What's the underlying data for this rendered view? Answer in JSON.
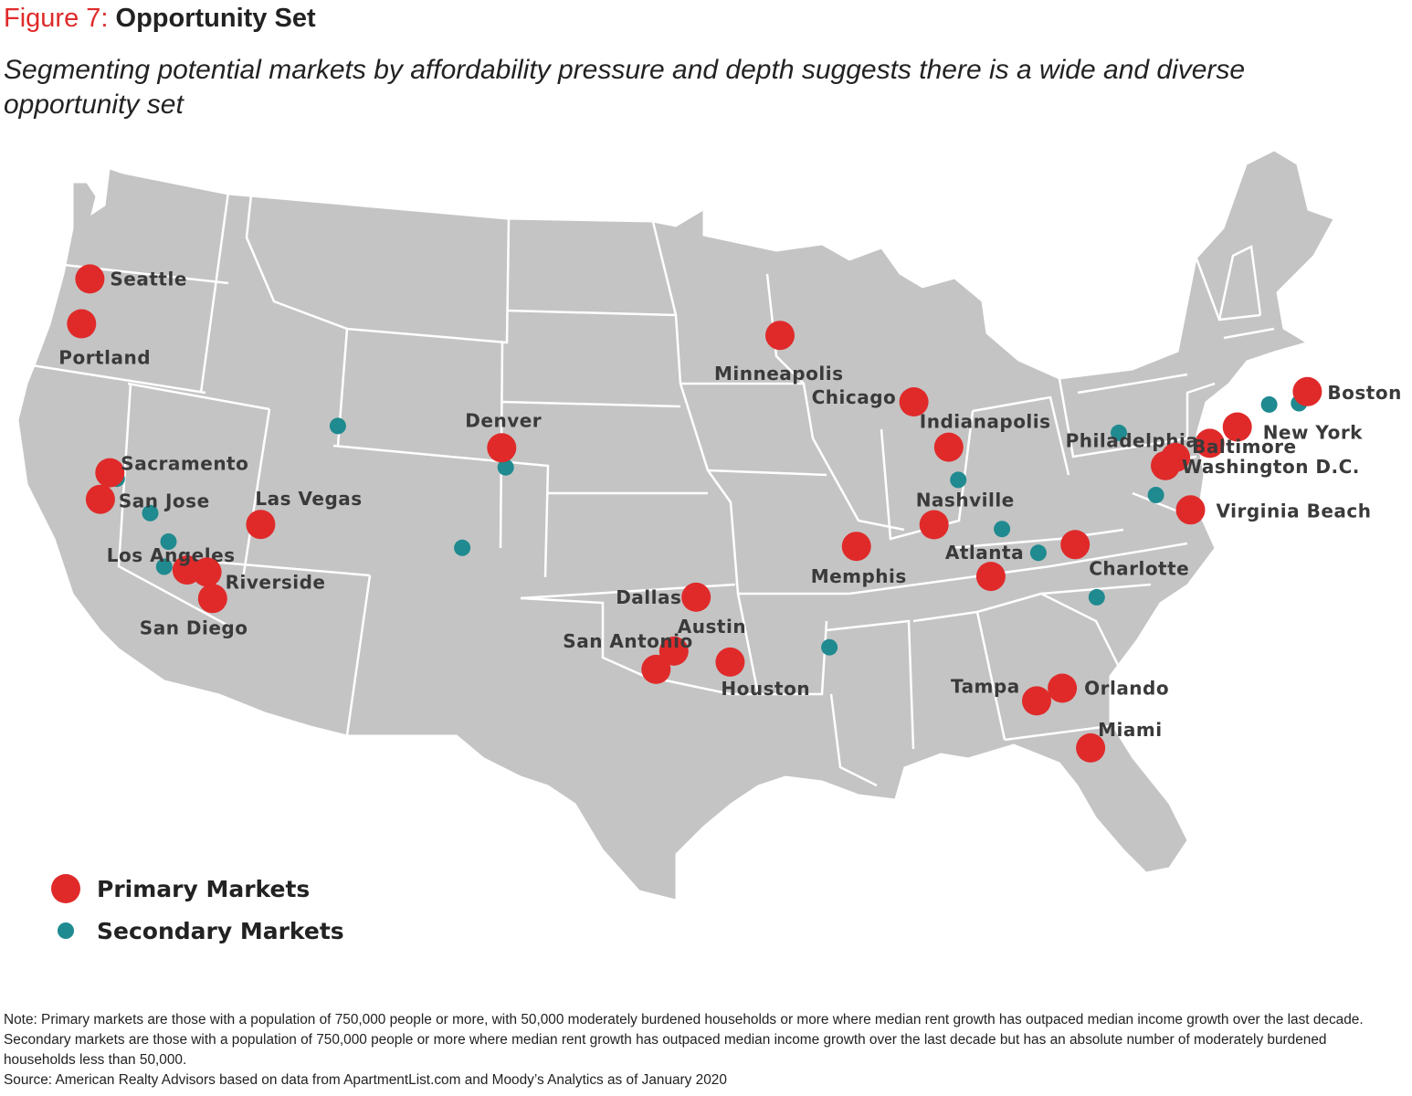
{
  "header": {
    "figure_label": "Figure 7:",
    "title": "Opportunity Set",
    "subtitle": "Segmenting potential markets by affordability pressure and depth suggests there is a wide and diverse opportunity set"
  },
  "colors": {
    "land": "#c4c4c4",
    "border": "#ffffff",
    "primary": "#e02a2a",
    "secondary": "#1f8a8f"
  },
  "legend": {
    "primary_label": "Primary Markets",
    "secondary_label": "Secondary Markets"
  },
  "primary_markets": [
    {
      "name": "Seattle",
      "lat": 47.61,
      "lon": -122.33
    },
    {
      "name": "Portland",
      "lat": 45.52,
      "lon": -122.68
    },
    {
      "name": "Sacramento",
      "lat": 38.58,
      "lon": -121.49
    },
    {
      "name": "San Jose",
      "lat": 37.34,
      "lon": -121.89
    },
    {
      "name": "Las Vegas",
      "lat": 36.17,
      "lon": -115.14
    },
    {
      "name": "Los Angeles",
      "lat": 34.05,
      "lon": -118.24
    },
    {
      "name": "Riverside",
      "lat": 33.95,
      "lon": -117.4
    },
    {
      "name": "San Diego",
      "lat": 32.72,
      "lon": -117.16
    },
    {
      "name": "Denver",
      "lat": 39.74,
      "lon": -104.99
    },
    {
      "name": "Minneapolis",
      "lat": 44.98,
      "lon": -93.27
    },
    {
      "name": "Chicago",
      "lat": 41.88,
      "lon": -87.63
    },
    {
      "name": "Indianapolis",
      "lat": 39.77,
      "lon": -86.16
    },
    {
      "name": "Nashville",
      "lat": 36.16,
      "lon": -86.78
    },
    {
      "name": "Memphis",
      "lat": 35.15,
      "lon": -90.05
    },
    {
      "name": "Atlanta",
      "lat": 33.75,
      "lon": -84.39
    },
    {
      "name": "Charlotte",
      "lat": 35.23,
      "lon": -80.84
    },
    {
      "name": "Dallas",
      "lat": 32.78,
      "lon": -96.8
    },
    {
      "name": "Austin",
      "lat": 30.27,
      "lon": -97.74
    },
    {
      "name": "San Antonio",
      "lat": 29.42,
      "lon": -98.49
    },
    {
      "name": "Houston",
      "lat": 29.76,
      "lon": -95.37
    },
    {
      "name": "Tampa",
      "lat": 27.95,
      "lon": -82.46
    },
    {
      "name": "Orlando",
      "lat": 28.54,
      "lon": -81.38
    },
    {
      "name": "Miami",
      "lat": 25.76,
      "lon": -80.19
    },
    {
      "name": "Boston",
      "lat": 42.36,
      "lon": -71.06
    },
    {
      "name": "New York",
      "lat": 40.71,
      "lon": -74.01
    },
    {
      "name": "Philadelphia",
      "lat": 39.95,
      "lon": -75.17
    },
    {
      "name": "Baltimore",
      "lat": 39.29,
      "lon": -76.61
    },
    {
      "name": "Washington D.C.",
      "lat": 38.91,
      "lon": -77.04
    },
    {
      "name": "Virginia Beach",
      "lat": 36.85,
      "lon": -75.98
    }
  ],
  "secondary_markets": [
    {
      "lat": 40.76,
      "lon": -111.89
    },
    {
      "lat": 38.3,
      "lon": -121.2
    },
    {
      "lat": 36.7,
      "lon": -119.79
    },
    {
      "lat": 35.37,
      "lon": -119.02
    },
    {
      "lat": 34.2,
      "lon": -119.2
    },
    {
      "lat": 38.83,
      "lon": -104.82
    },
    {
      "lat": 35.08,
      "lon": -106.65
    },
    {
      "lat": 30.45,
      "lon": -91.19
    },
    {
      "lat": 38.25,
      "lon": -85.76
    },
    {
      "lat": 35.96,
      "lon": -83.92
    },
    {
      "lat": 34.85,
      "lon": -82.39
    },
    {
      "lat": 32.78,
      "lon": -79.93
    },
    {
      "lat": 37.54,
      "lon": -77.44
    },
    {
      "lat": 40.44,
      "lon": -79.0
    },
    {
      "lat": 41.76,
      "lon": -72.67
    },
    {
      "lat": 41.82,
      "lon": -71.41
    }
  ],
  "notes": {
    "note": "Note: Primary markets are those with a population of 750,000 people or more, with 50,000 moderately burdened households or more where median rent growth has outpaced median income growth over the last decade. Secondary markets are those with a population of 750,000 people or more where median rent growth has outpaced median income growth over the last decade but has an absolute number of moderately burdened households less than 50,000.",
    "source": "Source: American Realty Advisors based on data from ApartmentList.com and Moody’s Analytics as of January 2020"
  }
}
